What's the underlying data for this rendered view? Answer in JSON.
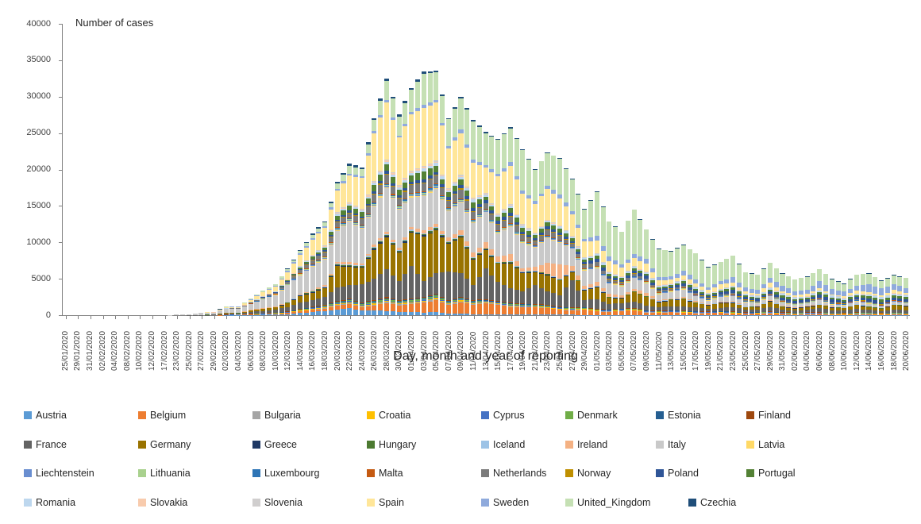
{
  "chart_data": {
    "type": "bar",
    "subtype": "stacked",
    "title": "Number of cases",
    "xlabel": "Day, month and year of reporting",
    "ylabel": "",
    "ylim": [
      0,
      40000
    ],
    "yticks": [
      0,
      5000,
      10000,
      15000,
      20000,
      25000,
      30000,
      35000,
      40000
    ],
    "grid": false,
    "legend_position": "bottom",
    "bars_between_labels": true,
    "categories": [
      "25/01/2020",
      "29/01/2020",
      "31/01/2020",
      "02/02/2020",
      "04/02/2020",
      "08/02/2020",
      "10/02/2020",
      "12/02/2020",
      "17/02/2020",
      "23/02/2020",
      "25/02/2020",
      "27/02/2020",
      "29/02/2020",
      "02/03/2020",
      "04/03/2020",
      "06/03/2020",
      "08/03/2020",
      "10/03/2020",
      "12/03/2020",
      "14/03/2020",
      "16/03/2020",
      "18/03/2020",
      "20/03/2020",
      "22/03/2020",
      "24/03/2020",
      "26/03/2020",
      "28/03/2020",
      "30/03/2020",
      "01/04/2020",
      "03/04/2020",
      "05/04/2020",
      "07/04/2020",
      "09/04/2020",
      "11/04/2020",
      "13/04/2020",
      "15/04/2020",
      "17/04/2020",
      "19/04/2020",
      "21/04/2020",
      "23/04/2020",
      "25/04/2020",
      "27/04/2020",
      "29/04/2020",
      "01/05/2020",
      "03/05/2020",
      "05/05/2020",
      "07/05/2020",
      "09/05/2020",
      "11/05/2020",
      "13/05/2020",
      "15/05/2020",
      "17/05/2020",
      "19/05/2020",
      "21/05/2020",
      "23/05/2020",
      "25/05/2020",
      "27/05/2020",
      "29/05/2020",
      "31/05/2020",
      "02/06/2020",
      "04/06/2020",
      "06/06/2020",
      "08/06/2020",
      "10/06/2020",
      "12/06/2020",
      "14/06/2020",
      "16/06/2020",
      "18/06/2020",
      "20/06/2020"
    ],
    "series": [
      {
        "name": "Austria",
        "color": "#5B9BD5"
      },
      {
        "name": "Belgium",
        "color": "#ED7D31"
      },
      {
        "name": "Bulgaria",
        "color": "#A5A5A5"
      },
      {
        "name": "Croatia",
        "color": "#FFC000"
      },
      {
        "name": "Cyprus",
        "color": "#4472C4"
      },
      {
        "name": "Denmark",
        "color": "#70AD47"
      },
      {
        "name": "Estonia",
        "color": "#255E91"
      },
      {
        "name": "Finland",
        "color": "#9E480E"
      },
      {
        "name": "France",
        "color": "#636363"
      },
      {
        "name": "Germany",
        "color": "#997300"
      },
      {
        "name": "Greece",
        "color": "#1F3864"
      },
      {
        "name": "Hungary",
        "color": "#4C7A31"
      },
      {
        "name": "Iceland",
        "color": "#9DC3E6"
      },
      {
        "name": "Ireland",
        "color": "#F4B183"
      },
      {
        "name": "Italy",
        "color": "#C9C9C9"
      },
      {
        "name": "Latvia",
        "color": "#FFD966"
      },
      {
        "name": "Liechtenstein",
        "color": "#698ED0"
      },
      {
        "name": "Lithuania",
        "color": "#A9D18E"
      },
      {
        "name": "Luxembourg",
        "color": "#2E75B6"
      },
      {
        "name": "Malta",
        "color": "#C55A11"
      },
      {
        "name": "Netherlands",
        "color": "#7B7B7B"
      },
      {
        "name": "Norway",
        "color": "#BF8F00"
      },
      {
        "name": "Poland",
        "color": "#2F5597"
      },
      {
        "name": "Portugal",
        "color": "#538135"
      },
      {
        "name": "Romania",
        "color": "#BDD7EE"
      },
      {
        "name": "Slovakia",
        "color": "#F8CBAD"
      },
      {
        "name": "Slovenia",
        "color": "#D0CECE"
      },
      {
        "name": "Spain",
        "color": "#FFE699"
      },
      {
        "name": "Sweden",
        "color": "#8FAADC"
      },
      {
        "name": "United_Kingdom",
        "color": "#C5E0B4"
      },
      {
        "name": "Czechia",
        "color": "#1F4E79"
      }
    ],
    "values": {
      "Austria": [
        0,
        0,
        0,
        0,
        0,
        0,
        0,
        0,
        0,
        0,
        0,
        0,
        0,
        10,
        20,
        40,
        60,
        100,
        160,
        300,
        430,
        560,
        800,
        930,
        700,
        680,
        570,
        480,
        440,
        330,
        440,
        250,
        200,
        160,
        130,
        90,
        80,
        100,
        70,
        60,
        70,
        60,
        50,
        50,
        40,
        40,
        30,
        40,
        40,
        30,
        30,
        40,
        30,
        20,
        30,
        40,
        20,
        20,
        40,
        30,
        20,
        30,
        30,
        20,
        20,
        30,
        30,
        20,
        40
      ],
      "Belgium": [
        0,
        0,
        0,
        0,
        0,
        0,
        0,
        0,
        0,
        0,
        0,
        0,
        0,
        20,
        30,
        50,
        60,
        80,
        120,
        200,
        290,
        350,
        560,
        650,
        420,
        650,
        1100,
        880,
        1060,
        1380,
        1600,
        1120,
        1580,
        1300,
        1500,
        1330,
        1050,
        970,
        1000,
        880,
        650,
        620,
        680,
        480,
        400,
        560,
        600,
        330,
        280,
        360,
        290,
        220,
        250,
        290,
        190,
        130,
        200,
        250,
        130,
        100,
        140,
        140,
        90,
        80,
        130,
        100,
        80,
        120,
        90
      ],
      "France": [
        3,
        2,
        1,
        0,
        0,
        5,
        0,
        0,
        1,
        0,
        10,
        20,
        40,
        130,
        100,
        280,
        340,
        410,
        590,
        830,
        900,
        1100,
        1800,
        1850,
        2450,
        2930,
        3800,
        2600,
        4400,
        2100,
        2750,
        3900,
        3300,
        2000,
        4200,
        2600,
        2000,
        1700,
        2600,
        1800,
        1600,
        3700,
        1000,
        1300,
        800,
        700,
        900,
        650,
        500,
        550,
        600,
        500,
        350,
        400,
        600,
        350,
        300,
        600,
        350,
        300,
        350,
        550,
        350,
        300,
        450,
        400,
        250,
        450,
        350
      ],
      "Germany": [
        0,
        0,
        0,
        0,
        0,
        0,
        0,
        0,
        0,
        0,
        0,
        0,
        0,
        150,
        60,
        210,
        280,
        300,
        510,
        930,
        1040,
        1150,
        2960,
        2530,
        2340,
        3970,
        4450,
        3880,
        4620,
        6170,
        5930,
        3830,
        4880,
        3500,
        2540,
        2460,
        3380,
        2460,
        1780,
        2240,
        1980,
        1150,
        1300,
        1640,
        790,
        680,
        1280,
        1160,
        670,
        800,
        910,
        580,
        460,
        680,
        570,
        290,
        360,
        740,
        330,
        270,
        390,
        410,
        350,
        340,
        550,
        350,
        340,
        580,
        570
      ],
      "Ireland": [
        0,
        0,
        0,
        0,
        0,
        0,
        0,
        0,
        0,
        0,
        0,
        0,
        0,
        10,
        10,
        20,
        20,
        30,
        40,
        90,
        130,
        190,
        250,
        300,
        230,
        290,
        360,
        300,
        390,
        420,
        370,
        500,
        550,
        630,
        830,
        730,
        950,
        390,
        490,
        1500,
        2000,
        700,
        430,
        600,
        380,
        270,
        330,
        420,
        160,
        130,
        200,
        150,
        90,
        80,
        120,
        70,
        40,
        60,
        80,
        40,
        30,
        40,
        40,
        20,
        20,
        30,
        20,
        20,
        10
      ],
      "Italy": [
        0,
        0,
        0,
        0,
        0,
        0,
        0,
        0,
        0,
        60,
        90,
        250,
        290,
        500,
        590,
        800,
        1250,
        1600,
        2310,
        2550,
        3230,
        3530,
        4210,
        5560,
        4790,
        5250,
        5970,
        5220,
        4050,
        4670,
        4810,
        3600,
        3840,
        4050,
        4090,
        3150,
        3790,
        3490,
        2670,
        3370,
        2970,
        2320,
        2090,
        1870,
        1440,
        1220,
        1440,
        1330,
        800,
        890,
        1000,
        670,
        450,
        640,
        650,
        530,
        400,
        520,
        420,
        320,
        320,
        520,
        280,
        280,
        380,
        340,
        210,
        330,
        260
      ],
      "Netherlands": [
        0,
        0,
        0,
        0,
        0,
        0,
        0,
        0,
        0,
        0,
        0,
        0,
        0,
        20,
        40,
        80,
        130,
        180,
        290,
        410,
        500,
        570,
        750,
        640,
        810,
        1020,
        1160,
        880,
        1010,
        1080,
        1020,
        900,
        1210,
        1010,
        730,
        780,
        890,
        690,
        520,
        710,
        620,
        400,
        450,
        510,
        320,
        280,
        340,
        310,
        190,
        160,
        230,
        190,
        130,
        120,
        180,
        120,
        90,
        110,
        130,
        90,
        70,
        100,
        90,
        60,
        50,
        80,
        70,
        50,
        60
      ],
      "Poland": [
        0,
        0,
        0,
        0,
        0,
        0,
        0,
        0,
        0,
        0,
        0,
        0,
        0,
        10,
        10,
        20,
        30,
        40,
        60,
        100,
        130,
        160,
        220,
        260,
        240,
        320,
        390,
        330,
        380,
        440,
        380,
        360,
        460,
        420,
        340,
        380,
        440,
        360,
        310,
        390,
        370,
        300,
        320,
        400,
        330,
        270,
        350,
        380,
        250,
        220,
        330,
        300,
        230,
        240,
        410,
        320,
        260,
        300,
        350,
        270,
        250,
        440,
        380,
        290,
        310,
        380,
        320,
        300,
        280
      ],
      "Portugal": [
        0,
        0,
        0,
        0,
        0,
        0,
        0,
        0,
        0,
        0,
        0,
        0,
        0,
        10,
        10,
        30,
        40,
        60,
        90,
        170,
        280,
        310,
        550,
        640,
        580,
        820,
        900,
        790,
        850,
        1080,
        850,
        640,
        780,
        750,
        520,
        570,
        660,
        550,
        440,
        600,
        540,
        370,
        380,
        480,
        330,
        270,
        330,
        310,
        230,
        220,
        290,
        240,
        190,
        220,
        330,
        240,
        200,
        280,
        330,
        250,
        230,
        350,
        300,
        230,
        270,
        380,
        340,
        290,
        330
      ],
      "Romania": [
        0,
        0,
        0,
        0,
        0,
        0,
        0,
        0,
        0,
        0,
        0,
        0,
        0,
        10,
        10,
        20,
        30,
        40,
        70,
        100,
        130,
        160,
        230,
        270,
        250,
        330,
        380,
        330,
        330,
        440,
        370,
        310,
        360,
        400,
        330,
        270,
        330,
        310,
        230,
        190,
        280,
        250,
        190,
        190,
        260,
        210,
        170,
        210,
        230,
        170,
        150,
        190,
        170,
        130,
        120,
        200,
        170,
        140,
        180,
        210,
        160,
        150,
        240,
        200,
        150,
        170,
        320,
        280,
        240
      ],
      "Spain": [
        0,
        0,
        0,
        0,
        0,
        0,
        0,
        0,
        0,
        0,
        10,
        30,
        60,
        140,
        130,
        330,
        530,
        620,
        1000,
        1520,
        2040,
        2470,
        2940,
        3650,
        4250,
        6580,
        7840,
        6530,
        7720,
        8000,
        8000,
        5530,
        5760,
        4830,
        3460,
        5100,
        5250,
        4200,
        3900,
        4200,
        3680,
        2940,
        2140,
        1780,
        1450,
        1170,
        1100,
        1080,
        600,
        510,
        550,
        500,
        410,
        640,
        450,
        250,
        300,
        660,
        270,
        200,
        290,
        330,
        100,
        250,
        400,
        300,
        200,
        390,
        290
      ],
      "Sweden": [
        0,
        0,
        0,
        0,
        0,
        0,
        0,
        0,
        0,
        0,
        0,
        0,
        0,
        30,
        40,
        70,
        90,
        120,
        160,
        200,
        230,
        240,
        280,
        300,
        250,
        320,
        360,
        300,
        400,
        440,
        380,
        320,
        460,
        490,
        370,
        390,
        550,
        460,
        400,
        450,
        560,
        410,
        400,
        600,
        560,
        450,
        540,
        640,
        470,
        420,
        640,
        560,
        420,
        450,
        750,
        610,
        480,
        650,
        780,
        590,
        550,
        900,
        770,
        580,
        620,
        1100,
        940,
        770,
        650
      ],
      "United_Kingdom": [
        0,
        0,
        0,
        0,
        0,
        0,
        0,
        0,
        0,
        0,
        0,
        0,
        0,
        50,
        50,
        90,
        150,
        200,
        280,
        340,
        400,
        450,
        710,
        1040,
        970,
        1450,
        2550,
        2620,
        3010,
        4250,
        3740,
        3630,
        4340,
        5230,
        4350,
        4620,
        4600,
        5530,
        4320,
        4450,
        4910,
        4340,
        4010,
        6030,
        4810,
        4410,
        6110,
        4000,
        3880,
        3450,
        3530,
        3540,
        2710,
        2630,
        2960,
        2000,
        2040,
        2100,
        1650,
        1620,
        1810,
        1660,
        1340,
        1040,
        1540,
        1430,
        1060,
        1220,
        1340
      ],
      "Czechia": [
        0,
        0,
        0,
        0,
        0,
        0,
        0,
        0,
        0,
        0,
        0,
        0,
        0,
        10,
        10,
        30,
        40,
        60,
        90,
        140,
        190,
        210,
        260,
        290,
        260,
        310,
        340,
        290,
        280,
        300,
        260,
        190,
        200,
        220,
        160,
        130,
        160,
        140,
        100,
        90,
        110,
        90,
        70,
        60,
        80,
        70,
        50,
        60,
        70,
        60,
        50,
        60,
        60,
        50,
        50,
        70,
        60,
        50,
        60,
        70,
        60,
        50,
        70,
        70,
        60,
        60,
        80,
        70,
        60
      ]
    },
    "minor_countries": [
      "Bulgaria",
      "Croatia",
      "Cyprus",
      "Denmark",
      "Estonia",
      "Finland",
      "Greece",
      "Hungary",
      "Iceland",
      "Latvia",
      "Liechtenstein",
      "Lithuania",
      "Luxembourg",
      "Malta",
      "Norway",
      "Slovakia",
      "Slovenia"
    ],
    "minor_total": [
      0,
      10,
      10,
      10,
      10,
      10,
      10,
      10,
      10,
      40,
      60,
      60,
      80,
      120,
      140,
      240,
      360,
      470,
      700,
      1090,
      1290,
      1480,
      1790,
      1910,
      1800,
      2190,
      2300,
      2190,
      2300,
      2390,
      2700,
      2000,
      2100,
      1900,
      1600,
      1600,
      1700,
      1500,
      1300,
      1400,
      1300,
      1100,
      1080,
      1000,
      950,
      900,
      980,
      900,
      820,
      860,
      900,
      820,
      700,
      760,
      820,
      700,
      680,
      760,
      700,
      620,
      680,
      700,
      620,
      600,
      680,
      640,
      560,
      640,
      600
    ]
  }
}
